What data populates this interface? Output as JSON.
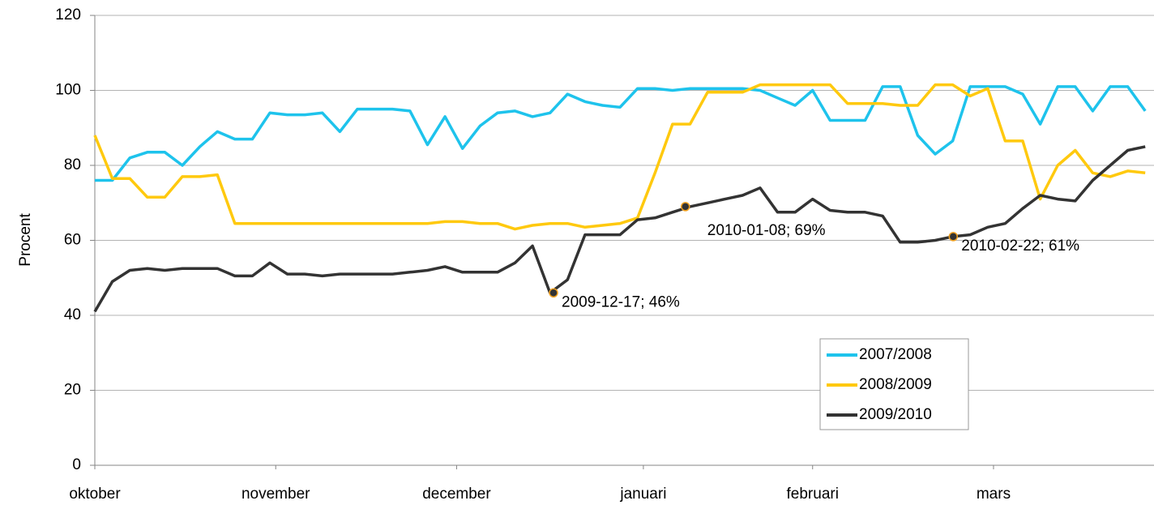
{
  "chart_data": {
    "type": "line",
    "y_label": "Procent",
    "x": [
      0,
      3,
      6,
      9,
      12,
      15,
      18,
      21,
      24,
      27,
      30,
      33,
      36,
      39,
      42,
      45,
      48,
      51,
      54,
      57,
      60,
      63,
      66,
      69,
      72,
      75,
      78,
      81,
      84,
      87,
      90,
      93,
      96,
      99,
      102,
      105,
      108,
      111,
      114,
      117,
      120,
      123,
      126,
      129,
      132,
      135,
      138,
      141,
      144,
      147,
      150,
      153,
      156,
      159,
      162,
      165,
      168,
      171,
      174,
      177,
      180
    ],
    "xlim": [
      0,
      181.5
    ],
    "xticks": [
      {
        "value": 0,
        "label": "oktober"
      },
      {
        "value": 31,
        "label": "november"
      },
      {
        "value": 62,
        "label": "december"
      },
      {
        "value": 94,
        "label": "januari"
      },
      {
        "value": 123,
        "label": "februari"
      },
      {
        "value": 154,
        "label": "mars"
      }
    ],
    "ylim": [
      0,
      120
    ],
    "yticks": [
      0,
      20,
      40,
      60,
      80,
      100,
      120
    ],
    "grid": true,
    "legend": "lower-right",
    "series": [
      {
        "name": "2007/2008",
        "color": "#1ec3ec",
        "values": [
          76,
          76,
          82,
          83.5,
          83.5,
          80,
          85,
          89,
          87,
          87,
          94,
          93.5,
          93.5,
          94,
          89,
          95,
          95,
          95,
          94.5,
          85.5,
          93,
          84.5,
          90.5,
          94,
          94.5,
          93,
          94,
          99,
          97,
          96,
          95.5,
          100.5,
          100.5,
          100,
          100.5,
          100.5,
          100.5,
          100.5,
          100,
          98,
          96,
          100,
          92,
          92,
          92,
          101,
          101,
          88,
          83,
          86.5,
          101,
          101,
          101,
          99,
          91,
          101,
          101,
          94.5,
          101,
          101,
          94.5
        ]
      },
      {
        "name": "2008/2009",
        "color": "#ffc90e",
        "values": [
          88,
          76.5,
          76.5,
          71.5,
          71.5,
          77,
          77,
          77.5,
          64.5,
          64.5,
          64.5,
          64.5,
          64.5,
          64.5,
          64.5,
          64.5,
          64.5,
          64.5,
          64.5,
          64.5,
          65,
          65,
          64.5,
          64.5,
          63,
          64,
          64.5,
          64.5,
          63.5,
          64,
          64.5,
          66,
          78,
          91,
          91,
          99.5,
          99.5,
          99.5,
          101.5,
          101.5,
          101.5,
          101.5,
          101.5,
          96.5,
          96.5,
          96.5,
          96,
          96,
          101.5,
          101.5,
          98.5,
          100.5,
          86.5,
          86.5,
          71,
          80,
          84,
          78,
          77,
          78.5,
          78
        ]
      },
      {
        "name": "2009/2010",
        "color": "#333333",
        "values": [
          41,
          49,
          52,
          52.5,
          52,
          52.5,
          52.5,
          52.5,
          50.5,
          50.5,
          54,
          51,
          51,
          50.5,
          51,
          51,
          51,
          51,
          51.5,
          52,
          53,
          51.5,
          51.5,
          51.5,
          54,
          58.5,
          46,
          49.5,
          61.5,
          61.5,
          61.5,
          65.5,
          66,
          67.5,
          69,
          70,
          71,
          72,
          74,
          67.5,
          67.5,
          71,
          68,
          67.5,
          67.5,
          66.5,
          59.5,
          59.5,
          60,
          61,
          61.5,
          63.5,
          64.5,
          68.5,
          72,
          71,
          70.5,
          76,
          80,
          84,
          85
        ]
      }
    ],
    "annotations": [
      {
        "text": "2009-12-17; 46%",
        "x": 78.6,
        "y": 46
      },
      {
        "text": "2010-01-08; 69%",
        "x": 101.2,
        "y": 69
      },
      {
        "text": "2010-02-22; 61%",
        "x": 147.1,
        "y": 61
      }
    ]
  }
}
